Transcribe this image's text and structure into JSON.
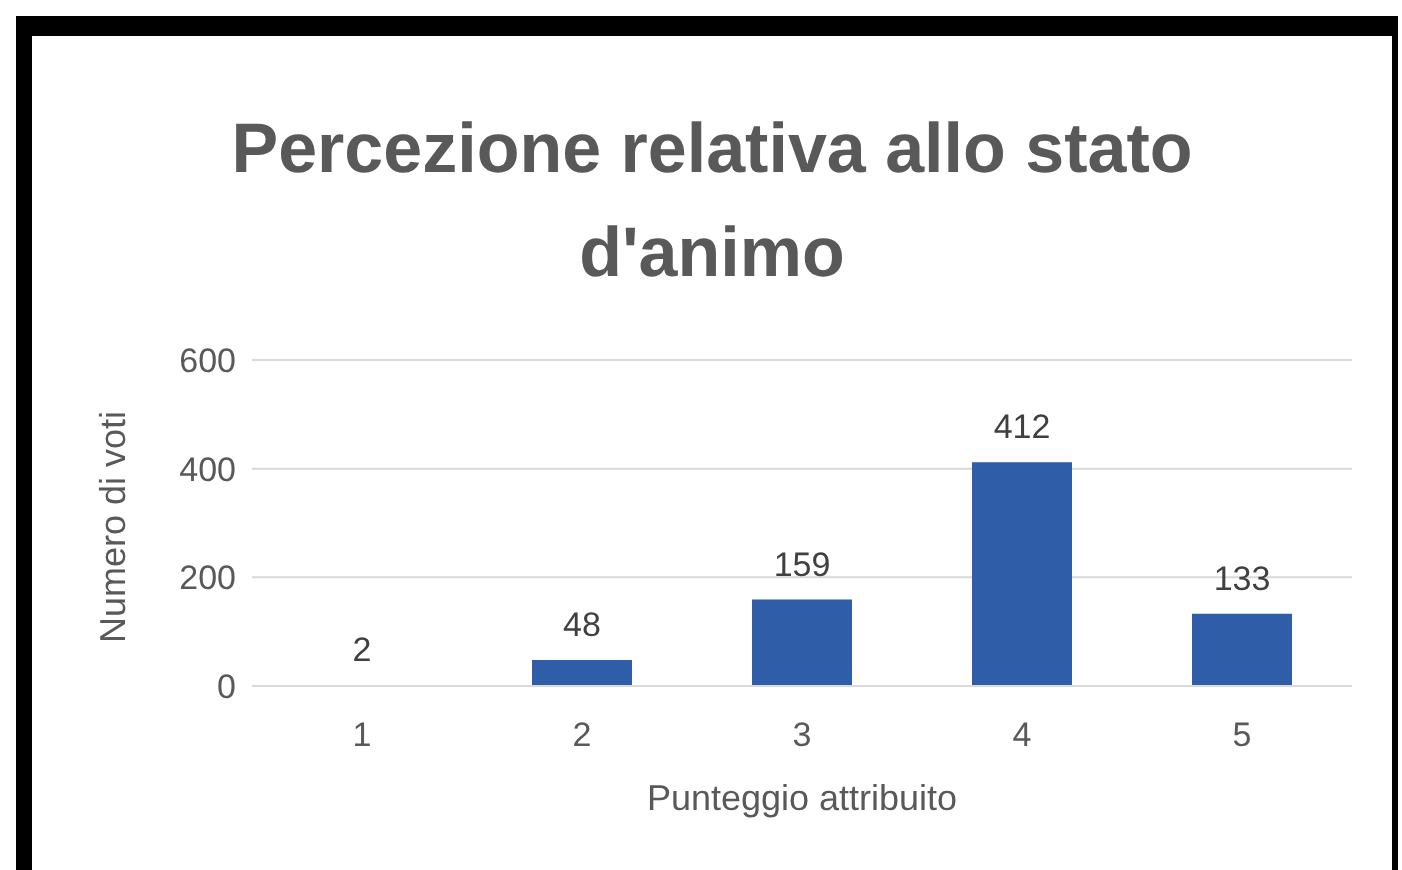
{
  "chart_data": {
    "type": "bar",
    "title": "Percezione relativa allo stato d'animo",
    "xlabel": "Punteggio attribuito",
    "ylabel": "Numero di voti",
    "categories": [
      "1",
      "2",
      "3",
      "4",
      "5"
    ],
    "values": [
      2,
      48,
      159,
      412,
      133
    ],
    "color": "#2f5da8",
    "ylim": [
      0,
      600
    ],
    "yticks": [
      0,
      200,
      400,
      600
    ],
    "grid": "y",
    "data_labels": true
  }
}
